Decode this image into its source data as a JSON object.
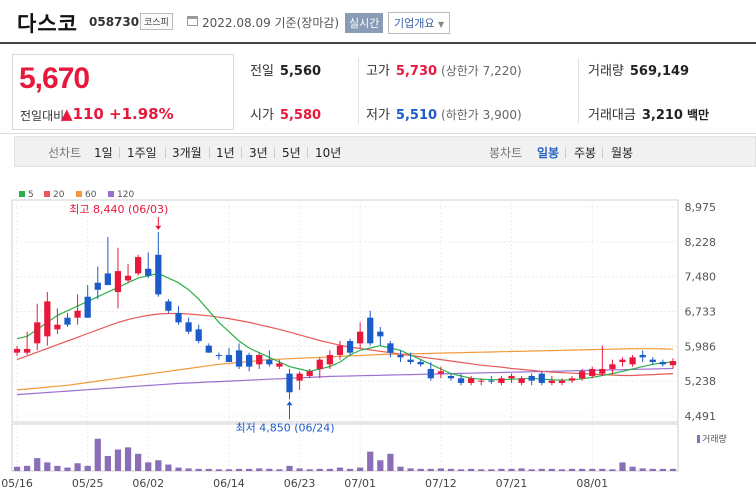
{
  "header": {
    "title": "다스코",
    "code": "058730",
    "market": "코스피",
    "date": "2022.08.09 기준(장마감)",
    "realtime_label": "실시간",
    "overview_label": "기업개요"
  },
  "quote": {
    "price": "5,670",
    "change_label": "전일대비",
    "change_value": "▲110",
    "change_pct": "+1.98%",
    "prev_label": "전일",
    "prev": "5,560",
    "high_label": "고가",
    "high": "5,730",
    "upper_limit": "(상한가 7,220)",
    "volume_label": "거래량",
    "volume": "569,149",
    "open_label": "시가",
    "open": "5,580",
    "low_label": "저가",
    "low": "5,510",
    "lower_limit": "(하한가 3,900)",
    "amount_label": "거래대금",
    "amount": "3,210",
    "amount_unit": "백만"
  },
  "toolbar": {
    "line_label": "선차트",
    "line_periods": [
      "1일",
      "1주일",
      "3개월",
      "1년",
      "3년",
      "5년",
      "10년"
    ],
    "candle_label": "봉차트",
    "candle_periods": [
      "일봉",
      "주봉",
      "월봉"
    ],
    "candle_active": "일봉"
  },
  "colors": {
    "up": "#e8183c",
    "down": "#1b5cc8",
    "ma5": "#2bb14a",
    "ma20": "#e85a5a",
    "ma60": "#f29a3a",
    "ma120": "#9b6fd0",
    "volume": "#8a6fb8"
  },
  "chart_data": {
    "type": "candlestick",
    "legend": [
      {
        "name": "5",
        "color": "#2bb14a"
      },
      {
        "name": "20",
        "color": "#e85a5a"
      },
      {
        "name": "60",
        "color": "#f29a3a"
      },
      {
        "name": "120",
        "color": "#9b6fd0"
      }
    ],
    "y_ticks": [
      "8,975",
      "8,228",
      "7,480",
      "6,733",
      "5,986",
      "5,238",
      "4,491"
    ],
    "ylim": [
      4491,
      8975
    ],
    "x_ticks": [
      "05/16",
      "05/25",
      "06/02",
      "06/14",
      "06/23",
      "07/01",
      "07/12",
      "07/21",
      "08/01"
    ],
    "annotations": {
      "high": "최고 8,440 (06/03)",
      "low": "최저 4,850 (06/24)"
    },
    "volume_label": "거래량",
    "candles": [
      {
        "o": 5850,
        "h": 5990,
        "l": 5780,
        "c": 5930
      },
      {
        "o": 5850,
        "h": 6300,
        "l": 5800,
        "c": 5930
      },
      {
        "o": 6050,
        "h": 6900,
        "l": 5900,
        "c": 6500
      },
      {
        "o": 6200,
        "h": 7150,
        "l": 6000,
        "c": 6950
      },
      {
        "o": 6350,
        "h": 6800,
        "l": 6250,
        "c": 6450
      },
      {
        "o": 6600,
        "h": 6700,
        "l": 6400,
        "c": 6450
      },
      {
        "o": 6600,
        "h": 7100,
        "l": 6450,
        "c": 6750
      },
      {
        "o": 7050,
        "h": 7300,
        "l": 6600,
        "c": 6600
      },
      {
        "o": 7350,
        "h": 7700,
        "l": 7000,
        "c": 7200
      },
      {
        "o": 7550,
        "h": 8330,
        "l": 7300,
        "c": 7300
      },
      {
        "o": 7150,
        "h": 8100,
        "l": 6800,
        "c": 7600
      },
      {
        "o": 7400,
        "h": 7750,
        "l": 7350,
        "c": 7500
      },
      {
        "o": 7550,
        "h": 7950,
        "l": 7500,
        "c": 7900
      },
      {
        "o": 7650,
        "h": 8000,
        "l": 7450,
        "c": 7500
      },
      {
        "o": 7950,
        "h": 8440,
        "l": 7050,
        "c": 7100
      },
      {
        "o": 6950,
        "h": 7000,
        "l": 6700,
        "c": 6750
      },
      {
        "o": 6700,
        "h": 6850,
        "l": 6450,
        "c": 6500
      },
      {
        "o": 6500,
        "h": 6600,
        "l": 6250,
        "c": 6300
      },
      {
        "o": 6350,
        "h": 6450,
        "l": 6050,
        "c": 6100
      },
      {
        "o": 6000,
        "h": 6050,
        "l": 5850,
        "c": 5850
      },
      {
        "o": 5800,
        "h": 5850,
        "l": 5700,
        "c": 5780
      },
      {
        "o": 5800,
        "h": 5950,
        "l": 5650,
        "c": 5650
      },
      {
        "o": 5900,
        "h": 6050,
        "l": 5500,
        "c": 5550
      },
      {
        "o": 5800,
        "h": 5850,
        "l": 5450,
        "c": 5550
      },
      {
        "o": 5600,
        "h": 5850,
        "l": 5500,
        "c": 5800
      },
      {
        "o": 5700,
        "h": 5900,
        "l": 5550,
        "c": 5600
      },
      {
        "o": 5550,
        "h": 5700,
        "l": 5500,
        "c": 5620
      },
      {
        "o": 5400,
        "h": 5500,
        "l": 4850,
        "c": 5000
      },
      {
        "o": 5250,
        "h": 5450,
        "l": 5050,
        "c": 5400
      },
      {
        "o": 5350,
        "h": 5500,
        "l": 5300,
        "c": 5450
      },
      {
        "o": 5500,
        "h": 5750,
        "l": 5300,
        "c": 5700
      },
      {
        "o": 5600,
        "h": 5900,
        "l": 5500,
        "c": 5800
      },
      {
        "o": 5800,
        "h": 6100,
        "l": 5700,
        "c": 6000
      },
      {
        "o": 6100,
        "h": 6150,
        "l": 5800,
        "c": 5850
      },
      {
        "o": 6050,
        "h": 6500,
        "l": 5950,
        "c": 6300
      },
      {
        "o": 6600,
        "h": 6750,
        "l": 6000,
        "c": 6050
      },
      {
        "o": 6300,
        "h": 6400,
        "l": 6000,
        "c": 6200
      },
      {
        "o": 6050,
        "h": 6100,
        "l": 5750,
        "c": 5850
      },
      {
        "o": 5800,
        "h": 5900,
        "l": 5650,
        "c": 5750
      },
      {
        "o": 5700,
        "h": 5850,
        "l": 5600,
        "c": 5650
      },
      {
        "o": 5650,
        "h": 5700,
        "l": 5550,
        "c": 5600
      },
      {
        "o": 5500,
        "h": 5650,
        "l": 5250,
        "c": 5300
      },
      {
        "o": 5400,
        "h": 5550,
        "l": 5300,
        "c": 5450
      },
      {
        "o": 5350,
        "h": 5400,
        "l": 5250,
        "c": 5300
      },
      {
        "o": 5300,
        "h": 5400,
        "l": 5150,
        "c": 5200
      },
      {
        "o": 5200,
        "h": 5350,
        "l": 5150,
        "c": 5300
      },
      {
        "o": 5250,
        "h": 5300,
        "l": 5150,
        "c": 5250
      },
      {
        "o": 5250,
        "h": 5350,
        "l": 5180,
        "c": 5230
      },
      {
        "o": 5200,
        "h": 5350,
        "l": 5150,
        "c": 5300
      },
      {
        "o": 5300,
        "h": 5400,
        "l": 5200,
        "c": 5350
      },
      {
        "o": 5200,
        "h": 5350,
        "l": 5150,
        "c": 5300
      },
      {
        "o": 5350,
        "h": 5400,
        "l": 5150,
        "c": 5250
      },
      {
        "o": 5400,
        "h": 5450,
        "l": 5150,
        "c": 5200
      },
      {
        "o": 5200,
        "h": 5350,
        "l": 5150,
        "c": 5250
      },
      {
        "o": 5200,
        "h": 5300,
        "l": 5150,
        "c": 5250
      },
      {
        "o": 5250,
        "h": 5350,
        "l": 5200,
        "c": 5300
      },
      {
        "o": 5300,
        "h": 5500,
        "l": 5250,
        "c": 5450
      },
      {
        "o": 5350,
        "h": 5550,
        "l": 5300,
        "c": 5500
      },
      {
        "o": 5400,
        "h": 6000,
        "l": 5350,
        "c": 5500
      },
      {
        "o": 5500,
        "h": 5700,
        "l": 5400,
        "c": 5600
      },
      {
        "o": 5650,
        "h": 5750,
        "l": 5550,
        "c": 5700
      },
      {
        "o": 5600,
        "h": 5800,
        "l": 5550,
        "c": 5750
      },
      {
        "o": 5800,
        "h": 5900,
        "l": 5650,
        "c": 5750
      },
      {
        "o": 5700,
        "h": 5750,
        "l": 5600,
        "c": 5650
      },
      {
        "o": 5650,
        "h": 5700,
        "l": 5550,
        "c": 5600
      },
      {
        "o": 5580,
        "h": 5730,
        "l": 5510,
        "c": 5670
      }
    ],
    "ma5": [
      6150,
      6200,
      6350,
      6500,
      6650,
      6750,
      6850,
      6950,
      7050,
      7150,
      7250,
      7350,
      7450,
      7500,
      7550,
      7450,
      7350,
      7200,
      7000,
      6750,
      6500,
      6300,
      6100,
      5950,
      5850,
      5750,
      5650,
      5550,
      5500,
      5450,
      5500,
      5550,
      5650,
      5800,
      5900,
      5950,
      6000,
      5950,
      5900,
      5800,
      5700,
      5600,
      5500,
      5400,
      5350,
      5300,
      5280,
      5270,
      5270,
      5280,
      5290,
      5300,
      5280,
      5270,
      5260,
      5270,
      5290,
      5320,
      5360,
      5400,
      5450,
      5500,
      5550,
      5600,
      5630,
      5650
    ],
    "ma20": [
      5700,
      5780,
      5860,
      5940,
      6020,
      6100,
      6180,
      6260,
      6340,
      6420,
      6500,
      6560,
      6610,
      6650,
      6680,
      6690,
      6690,
      6680,
      6660,
      6640,
      6610,
      6580,
      6540,
      6500,
      6450,
      6400,
      6350,
      6290,
      6230,
      6170,
      6110,
      6060,
      6010,
      5970,
      5940,
      5910,
      5880,
      5850,
      5820,
      5790,
      5760,
      5730,
      5700,
      5670,
      5640,
      5610,
      5580,
      5560,
      5540,
      5510,
      5490,
      5470,
      5450,
      5430,
      5420,
      5410,
      5400,
      5390,
      5380,
      5370,
      5360,
      5360,
      5370,
      5380,
      5390,
      5400
    ],
    "ma60": [
      5050,
      5070,
      5090,
      5110,
      5130,
      5150,
      5180,
      5210,
      5240,
      5270,
      5300,
      5330,
      5360,
      5390,
      5420,
      5450,
      5480,
      5510,
      5540,
      5570,
      5600,
      5620,
      5640,
      5660,
      5680,
      5700,
      5710,
      5720,
      5730,
      5740,
      5750,
      5760,
      5770,
      5780,
      5790,
      5800,
      5810,
      5815,
      5820,
      5825,
      5830,
      5835,
      5840,
      5845,
      5850,
      5855,
      5860,
      5865,
      5870,
      5875,
      5880,
      5885,
      5890,
      5895,
      5900,
      5905,
      5910,
      5915,
      5920,
      5925,
      5930,
      5935,
      5935,
      5935,
      5930,
      5925
    ],
    "ma120": [
      4950,
      4965,
      4980,
      4995,
      5010,
      5025,
      5040,
      5055,
      5070,
      5085,
      5100,
      5115,
      5130,
      5145,
      5160,
      5175,
      5190,
      5200,
      5210,
      5220,
      5230,
      5240,
      5250,
      5260,
      5270,
      5280,
      5290,
      5300,
      5310,
      5320,
      5330,
      5340,
      5345,
      5350,
      5355,
      5360,
      5365,
      5370,
      5375,
      5380,
      5385,
      5390,
      5395,
      5400,
      5405,
      5410,
      5415,
      5420,
      5425,
      5430,
      5435,
      5440,
      5445,
      5450,
      5455,
      5460,
      5465,
      5470,
      5475,
      5480,
      5485,
      5490,
      5495,
      5500,
      5505,
      5510
    ],
    "volume": [
      0.1,
      0.12,
      0.3,
      0.2,
      0.12,
      0.08,
      0.18,
      0.12,
      0.75,
      0.35,
      0.5,
      0.55,
      0.4,
      0.2,
      0.25,
      0.15,
      0.08,
      0.06,
      0.05,
      0.05,
      0.04,
      0.04,
      0.05,
      0.05,
      0.06,
      0.05,
      0.04,
      0.12,
      0.06,
      0.04,
      0.05,
      0.05,
      0.08,
      0.05,
      0.08,
      0.45,
      0.25,
      0.4,
      0.1,
      0.06,
      0.05,
      0.05,
      0.06,
      0.05,
      0.04,
      0.05,
      0.04,
      0.04,
      0.05,
      0.05,
      0.06,
      0.04,
      0.05,
      0.05,
      0.04,
      0.05,
      0.05,
      0.05,
      0.05,
      0.04,
      0.2,
      0.1,
      0.06,
      0.05,
      0.05,
      0.05
    ]
  }
}
